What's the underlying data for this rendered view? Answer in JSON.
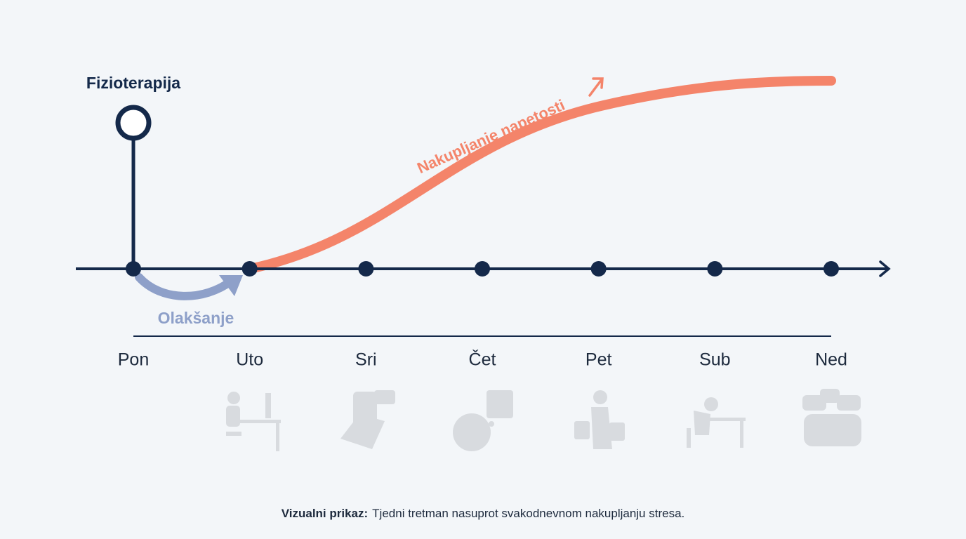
{
  "treatment_label": "Fizioterapija",
  "tension_label": "Nakupljanje napetosti",
  "relief_label": "Olakšanje",
  "days": [
    "Pon",
    "Uto",
    "Sri",
    "Čet",
    "Pet",
    "Sub",
    "Ned"
  ],
  "caption": {
    "bold": "Vizualni prikaz:",
    "text": "Tjedni tretman nasuprot svakodnevnom nakupljanju stresa."
  }
}
